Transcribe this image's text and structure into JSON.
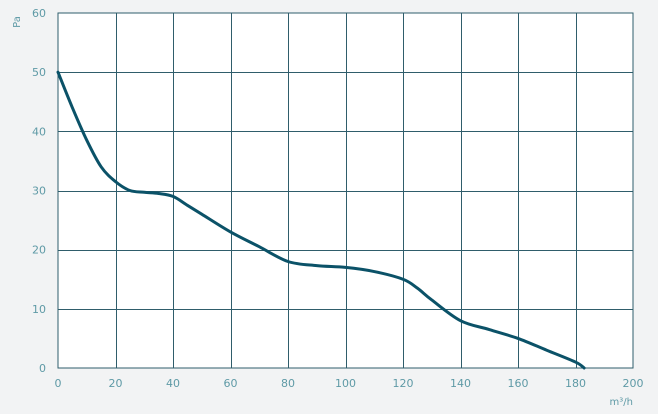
{
  "colors": {
    "curve": "#0b5268",
    "grid": "#2f5d6b",
    "tick": "#5f9aa6",
    "background": "#f2f3f4",
    "plot": "#ffffff"
  },
  "chart_data": {
    "type": "line",
    "title": "",
    "xlabel": "m³/h",
    "ylabel": "Pa",
    "xlim": [
      0,
      200
    ],
    "ylim": [
      0,
      60
    ],
    "grid": true,
    "x_ticks": [
      0,
      20,
      40,
      60,
      80,
      100,
      120,
      140,
      160,
      180,
      200
    ],
    "y_ticks": [
      0,
      10,
      20,
      30,
      40,
      50,
      60
    ],
    "series": [
      {
        "x": [
          0,
          5,
          10,
          15,
          20,
          25,
          30,
          35,
          40,
          45,
          50,
          60,
          70,
          80,
          90,
          100,
          110,
          120,
          125,
          130,
          140,
          150,
          160,
          170,
          180,
          183
        ],
        "y": [
          50,
          44,
          38.5,
          34,
          31.5,
          30,
          29.7,
          29.5,
          29,
          27.5,
          26,
          23,
          20.5,
          18,
          17.3,
          17,
          16.3,
          15,
          13.5,
          11.5,
          8,
          6.5,
          5,
          3,
          1,
          0
        ]
      }
    ]
  }
}
